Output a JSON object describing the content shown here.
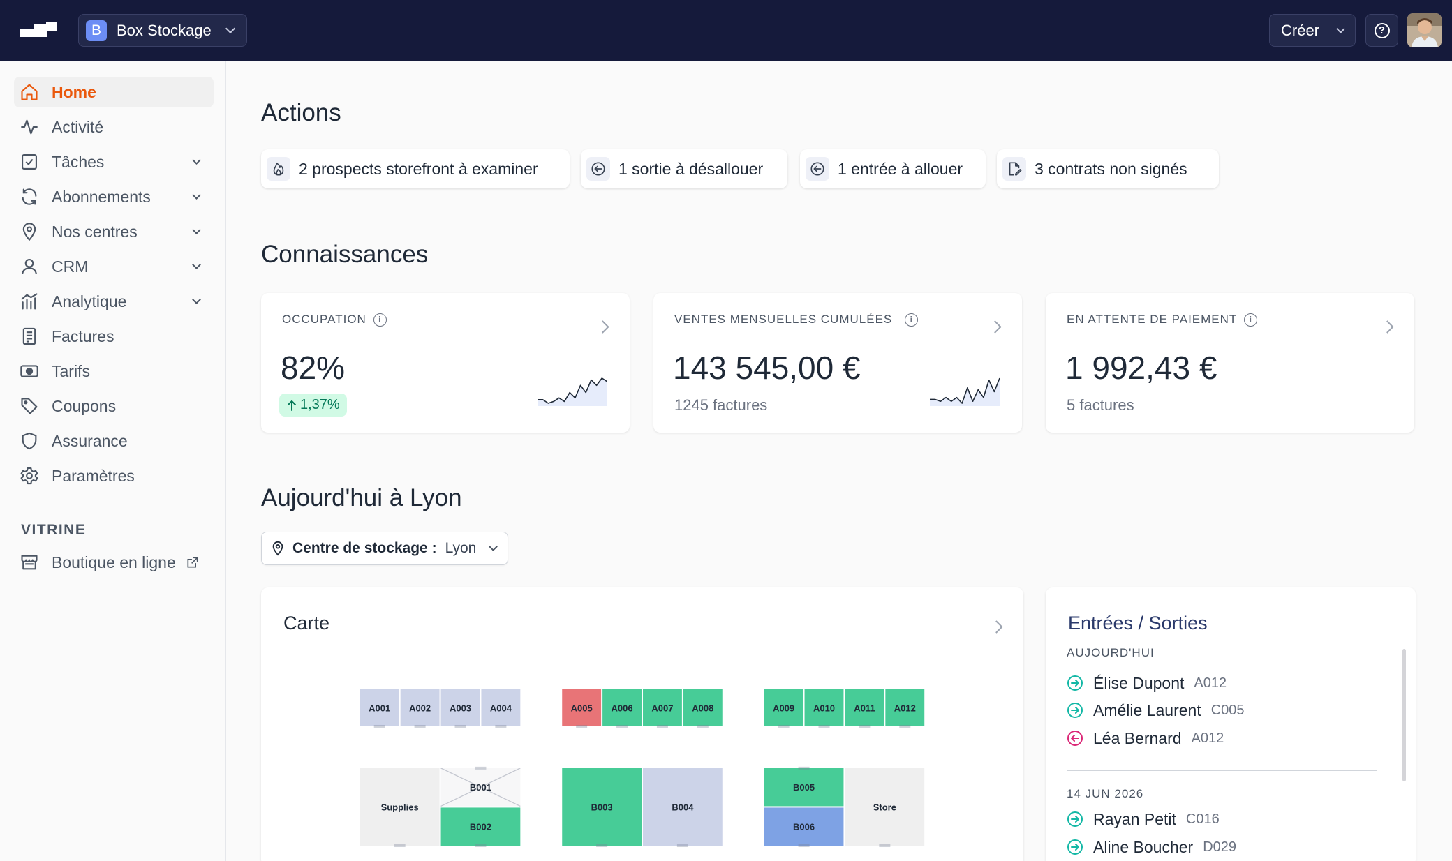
{
  "topbar": {
    "org_badge": "B",
    "org_name": "Box Stockage",
    "create_label": "Créer",
    "help_icon": "?"
  },
  "sidebar": {
    "items": [
      {
        "label": "Home",
        "icon": "home-icon",
        "active": true
      },
      {
        "label": "Activité",
        "icon": "activity-icon"
      },
      {
        "label": "Tâches",
        "icon": "checkbox-icon",
        "expandable": true
      },
      {
        "label": "Abonnements",
        "icon": "refresh-icon",
        "expandable": true
      },
      {
        "label": "Nos centres",
        "icon": "map-pin-icon",
        "expandable": true
      },
      {
        "label": "CRM",
        "icon": "user-icon",
        "expandable": true
      },
      {
        "label": "Analytique",
        "icon": "bar-chart-icon",
        "expandable": true
      },
      {
        "label": "Factures",
        "icon": "invoice-icon"
      },
      {
        "label": "Tarifs",
        "icon": "banknote-icon"
      },
      {
        "label": "Coupons",
        "icon": "tag-icon"
      },
      {
        "label": "Assurance",
        "icon": "shield-icon"
      },
      {
        "label": "Paramètres",
        "icon": "gear-icon"
      }
    ],
    "vitrine_title": "VITRINE",
    "vitrine_item": {
      "label": "Boutique en ligne",
      "icon": "storefront-icon"
    }
  },
  "actions": {
    "title": "Actions",
    "chips": [
      {
        "label": "2 prospects storefront à examiner",
        "icon": "flame-icon"
      },
      {
        "label": "1 sortie à désallouer",
        "icon": "arrow-left-circle-icon"
      },
      {
        "label": "1 entrée à allouer",
        "icon": "arrow-left-circle-icon"
      },
      {
        "label": "3 contrats non signés",
        "icon": "signature-file-icon"
      }
    ]
  },
  "knowledge": {
    "title": "Connaissances",
    "kpis": [
      {
        "title": "OCCUPATION",
        "value": "82%",
        "delta": "1,37%",
        "trend": [
          5,
          5,
          3,
          4,
          6,
          4,
          9,
          6,
          13,
          9,
          16,
          13,
          17,
          15
        ]
      },
      {
        "title": "VENTES MENSUELLES CUMULÉES",
        "value": "143 545,00 €",
        "sub": "1245 factures",
        "trend": [
          6,
          6,
          5,
          7,
          5,
          7,
          4,
          12,
          5,
          11,
          7,
          16,
          10,
          17
        ]
      },
      {
        "title": "EN ATTENTE DE PAIEMENT",
        "value": "1 992,43 €",
        "sub": "5 factures"
      }
    ]
  },
  "today": {
    "title": "Aujourd'hui à Lyon",
    "center_label": "Centre de stockage :",
    "center_value": "Lyon"
  },
  "map_card": {
    "title": "Carte",
    "colors": {
      "available": "#ccd3e8",
      "occupied": "#47cc97",
      "overdue": "#e87477",
      "reserved": "#7ea2e4",
      "neutral": "#efefef"
    },
    "units": [
      {
        "id": "A001",
        "status": "available"
      },
      {
        "id": "A002",
        "status": "available"
      },
      {
        "id": "A003",
        "status": "available"
      },
      {
        "id": "A004",
        "status": "available"
      },
      {
        "id": "A005",
        "status": "overdue"
      },
      {
        "id": "A006",
        "status": "occupied"
      },
      {
        "id": "A007",
        "status": "occupied"
      },
      {
        "id": "A008",
        "status": "occupied"
      },
      {
        "id": "A009",
        "status": "occupied"
      },
      {
        "id": "A010",
        "status": "occupied"
      },
      {
        "id": "A011",
        "status": "occupied"
      },
      {
        "id": "A012",
        "status": "occupied"
      },
      {
        "id": "Supplies",
        "status": "neutral"
      },
      {
        "id": "B001",
        "status": "blocked"
      },
      {
        "id": "B002",
        "status": "occupied"
      },
      {
        "id": "B003",
        "status": "occupied"
      },
      {
        "id": "B004",
        "status": "available"
      },
      {
        "id": "B005",
        "status": "occupied"
      },
      {
        "id": "B006",
        "status": "reserved"
      },
      {
        "id": "Store",
        "status": "neutral"
      }
    ]
  },
  "moves": {
    "title": "Entrées / Sorties",
    "groups": [
      {
        "day": "AUJOURD'HUI",
        "rows": [
          {
            "name": "Élise Dupont",
            "unit": "A012",
            "direction": "in"
          },
          {
            "name": "Amélie Laurent",
            "unit": "C005",
            "direction": "in"
          },
          {
            "name": "Léa Bernard",
            "unit": "A012",
            "direction": "out"
          }
        ]
      },
      {
        "day": "14 JUN 2026",
        "rows": [
          {
            "name": "Rayan Petit",
            "unit": "C016",
            "direction": "in"
          },
          {
            "name": "Aline Boucher",
            "unit": "D029",
            "direction": "in"
          }
        ]
      }
    ]
  }
}
